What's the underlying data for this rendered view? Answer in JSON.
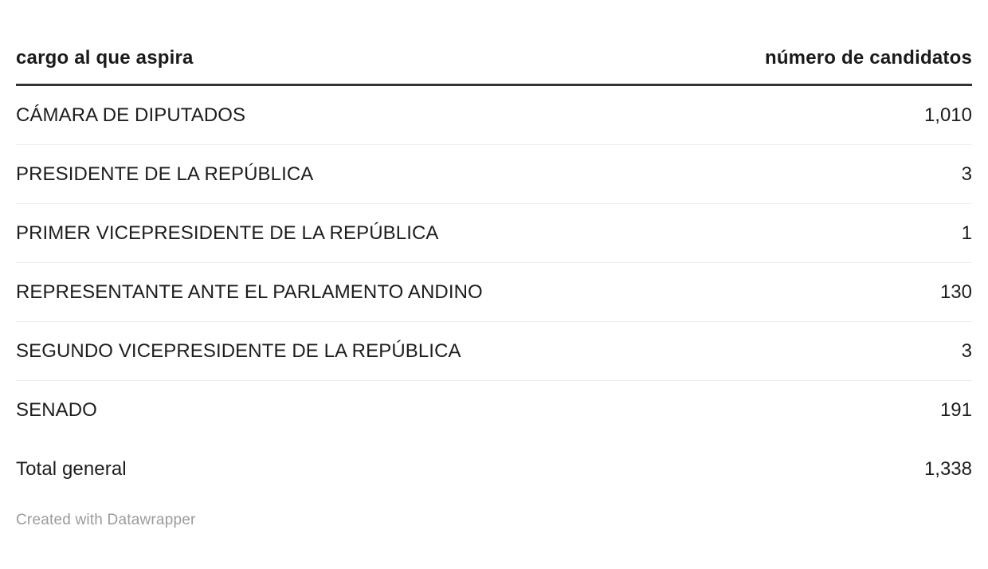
{
  "chart_data": {
    "type": "table",
    "columns": [
      "cargo al que aspira",
      "número de candidatos"
    ],
    "rows": [
      {
        "label": "CÁMARA DE DIPUTADOS",
        "value": "1,010"
      },
      {
        "label": "PRESIDENTE DE LA REPÚBLICA",
        "value": "3"
      },
      {
        "label": "PRIMER VICEPRESIDENTE DE LA REPÚBLICA",
        "value": "1"
      },
      {
        "label": "REPRESENTANTE ANTE EL PARLAMENTO ANDINO",
        "value": "130"
      },
      {
        "label": "SEGUNDO VICEPRESIDENTE DE LA REPÚBLICA",
        "value": "3"
      },
      {
        "label": "SENADO",
        "value": "191"
      }
    ],
    "total": {
      "label": "Total general",
      "value": "1,338"
    },
    "footer": "Created with Datawrapper",
    "layout": {
      "header_rule": "3px solid dark",
      "row_divider": "1px light gray",
      "value_alignment": "right"
    }
  },
  "table": {
    "header": {
      "label": "cargo al que aspira",
      "value": "número de candidatos"
    },
    "rows": [
      {
        "label": "CÁMARA DE DIPUTADOS",
        "value": "1,010"
      },
      {
        "label": "PRESIDENTE DE LA REPÚBLICA",
        "value": "3"
      },
      {
        "label": "PRIMER VICEPRESIDENTE DE LA REPÚBLICA",
        "value": "1"
      },
      {
        "label": "REPRESENTANTE ANTE EL PARLAMENTO ANDINO",
        "value": "130"
      },
      {
        "label": "SEGUNDO VICEPRESIDENTE DE LA REPÚBLICA",
        "value": "3"
      },
      {
        "label": "SENADO",
        "value": "191"
      }
    ],
    "total": {
      "label": "Total general",
      "value": "1,338"
    },
    "footer": "Created with Datawrapper"
  },
  "colors": {
    "header_text": "#1a1a1a",
    "body_text": "#1d1d1d",
    "header_rule": "#333333",
    "row_divider": "#eeeeee",
    "footer_text": "#9b9b9b",
    "background": "#ffffff"
  }
}
